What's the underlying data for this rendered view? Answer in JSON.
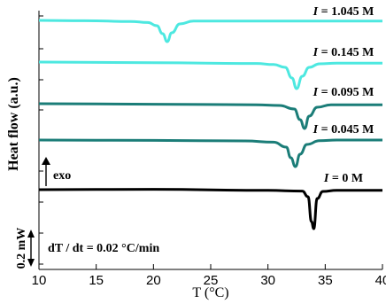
{
  "chart_data": {
    "type": "line",
    "xlabel": "T (°C)",
    "ylabel": "Heat flow (a.u.)",
    "xlim": [
      10,
      40
    ],
    "x_ticks": [
      "10",
      "15",
      "20",
      "25",
      "30",
      "35",
      "40"
    ],
    "grid": false,
    "annotations": {
      "exo": "exo",
      "scale_bar": "0.2 mW",
      "rate": "dT / dt = 0.02 °C/min"
    },
    "series": [
      {
        "name": "I = 1.045 M",
        "color": "#4de8e0",
        "values": [
          [
            10,
            0
          ],
          [
            14,
            -0.002
          ],
          [
            18,
            -0.006
          ],
          [
            19.5,
            -0.012
          ],
          [
            20.3,
            -0.03
          ],
          [
            20.8,
            -0.075
          ],
          [
            21.2,
            -0.12
          ],
          [
            21.6,
            -0.07
          ],
          [
            22.3,
            -0.02
          ],
          [
            23.5,
            -0.004
          ],
          [
            30,
            -0.004
          ],
          [
            40,
            -0.004
          ]
        ]
      },
      {
        "name": "I = 0.145 M",
        "color": "#4de8e0",
        "values": [
          [
            10,
            0
          ],
          [
            20,
            -0.004
          ],
          [
            29,
            -0.008
          ],
          [
            30.5,
            -0.014
          ],
          [
            31.5,
            -0.03
          ],
          [
            32.1,
            -0.09
          ],
          [
            32.5,
            -0.15
          ],
          [
            33.0,
            -0.08
          ],
          [
            33.6,
            -0.03
          ],
          [
            34.5,
            -0.01
          ],
          [
            36,
            -0.006
          ],
          [
            40,
            -0.006
          ]
        ]
      },
      {
        "name": "I = 0.095 M",
        "color": "#1b7d78",
        "values": [
          [
            10,
            0
          ],
          [
            20,
            -0.003
          ],
          [
            29,
            -0.006
          ],
          [
            31,
            -0.01
          ],
          [
            32.3,
            -0.03
          ],
          [
            32.8,
            -0.09
          ],
          [
            33.2,
            -0.14
          ],
          [
            33.6,
            -0.07
          ],
          [
            34.3,
            -0.02
          ],
          [
            35.5,
            -0.006
          ],
          [
            40,
            -0.006
          ]
        ]
      },
      {
        "name": "I = 0.045 M",
        "color": "#1b7d78",
        "values": [
          [
            10,
            0
          ],
          [
            20,
            -0.002
          ],
          [
            28,
            -0.005
          ],
          [
            30.5,
            -0.012
          ],
          [
            31.6,
            -0.04
          ],
          [
            32.0,
            -0.1
          ],
          [
            32.4,
            -0.15
          ],
          [
            32.8,
            -0.08
          ],
          [
            33.4,
            -0.025
          ],
          [
            34.5,
            -0.004
          ],
          [
            36,
            0
          ],
          [
            40,
            0
          ]
        ]
      },
      {
        "name": "I = 0 M",
        "color": "#000000",
        "values": [
          [
            10,
            0
          ],
          [
            20,
            0.002
          ],
          [
            30,
            -0.004
          ],
          [
            33,
            -0.008
          ],
          [
            33.5,
            -0.04
          ],
          [
            33.8,
            -0.18
          ],
          [
            34.0,
            -0.22
          ],
          [
            34.3,
            -0.05
          ],
          [
            34.8,
            -0.01
          ],
          [
            36,
            -0.004
          ],
          [
            40,
            -0.004
          ]
        ]
      }
    ]
  }
}
